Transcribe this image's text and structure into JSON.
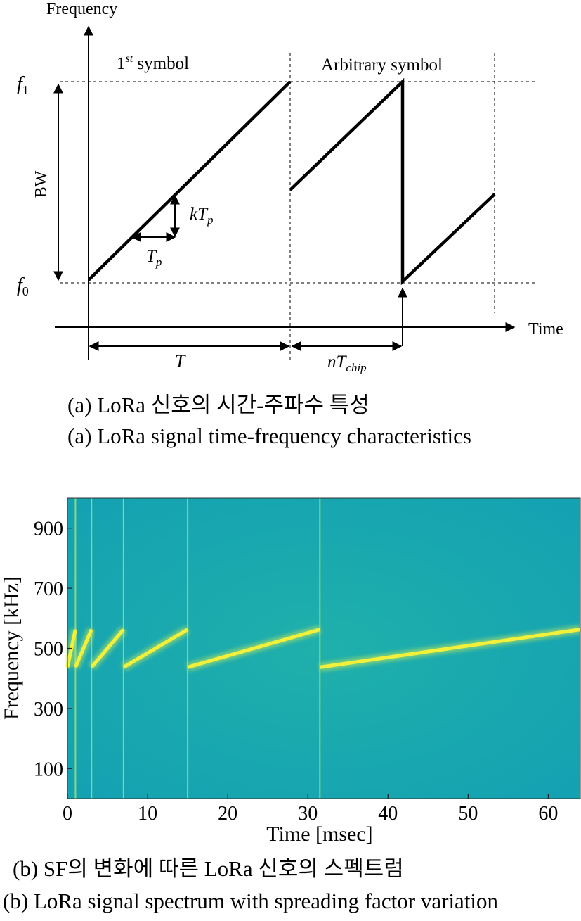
{
  "figure_a": {
    "axis_y_label": "Frequency",
    "axis_x_label": "Time",
    "label_first_symbol_base": "1",
    "label_first_symbol_sup": "st",
    "label_first_symbol_rest": " symbol",
    "label_arbitrary_symbol": "Arbitrary symbol",
    "label_f1_base": "f",
    "label_f1_sub": "1",
    "label_f0_base": "f",
    "label_f0_sub": "0",
    "label_bw": "BW",
    "label_ktp_k": "kT",
    "label_ktp_sub": "p",
    "label_tp_t": "T",
    "label_tp_sub": "p",
    "label_T": "T",
    "label_ntchip_n": "nT",
    "label_ntchip_sub": "chip",
    "caption_ko": "(a) LoRa 신호의 시간-주파수 특성",
    "caption_en": "(a) LoRa signal time-frequency characteristics"
  },
  "figure_b": {
    "caption_ko": "(b) SF의 변화에 따른 LoRa 신호의 스펙트럼",
    "caption_en": "(b) LoRa signal spectrum with spreading factor variation"
  },
  "chart_data": {
    "type": "heatmap",
    "xlabel": "Time [msec]",
    "ylabel": "Frequency [kHz]",
    "xlim": [
      0,
      64
    ],
    "ylim": [
      0,
      1000
    ],
    "x_ticks": [
      0,
      10,
      20,
      30,
      40,
      50,
      60
    ],
    "y_ticks": [
      100,
      300,
      500,
      700,
      900
    ],
    "colors": {
      "background": "#18a8ad",
      "chirp": "#f2f03a"
    },
    "chirps": [
      {
        "t_start": 0,
        "t_end": 1,
        "f_start": 437,
        "f_end": 563
      },
      {
        "t_start": 1,
        "t_end": 3,
        "f_start": 437,
        "f_end": 563
      },
      {
        "t_start": 3,
        "t_end": 7,
        "f_start": 437,
        "f_end": 563
      },
      {
        "t_start": 7,
        "t_end": 15,
        "f_start": 437,
        "f_end": 563
      },
      {
        "t_start": 15,
        "t_end": 31.5,
        "f_start": 437,
        "f_end": 563
      },
      {
        "t_start": 31.5,
        "t_end": 64,
        "f_start": 437,
        "f_end": 563
      }
    ],
    "boundaries": [
      1,
      3,
      7,
      15,
      31.5
    ]
  }
}
